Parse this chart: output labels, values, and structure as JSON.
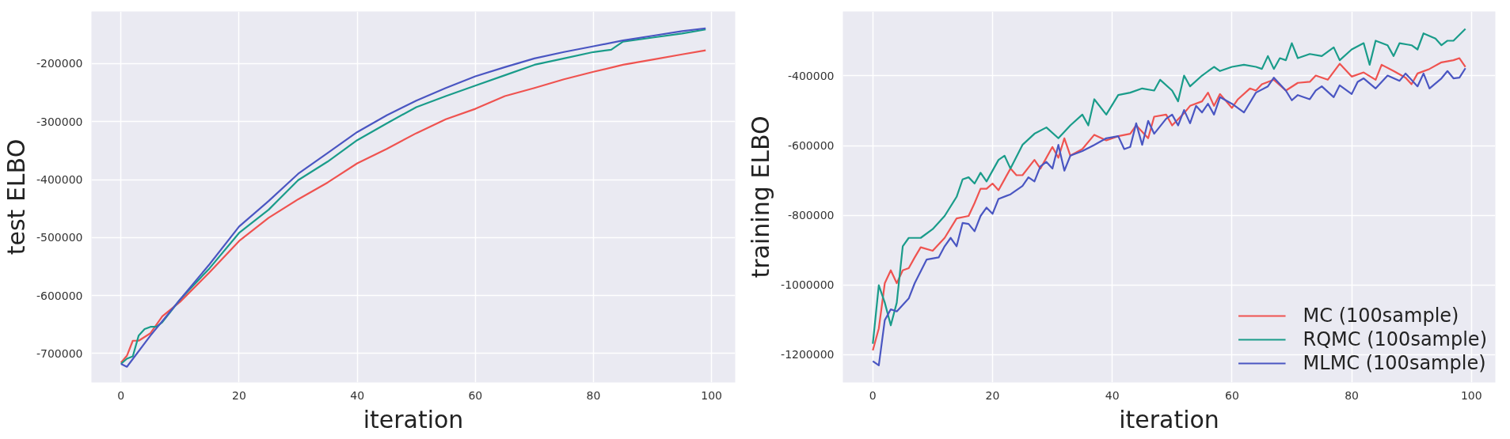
{
  "chart_data": [
    {
      "type": "line",
      "xlabel": "iteration",
      "ylabel": "test ELBO",
      "xlim": [
        -5,
        104
      ],
      "ylim": [
        -750000,
        -110000
      ],
      "xticks": [
        0,
        20,
        40,
        60,
        80,
        100
      ],
      "yticks": [
        -700000,
        -600000,
        -500000,
        -400000,
        -300000,
        -200000
      ],
      "grid": true,
      "legend": false,
      "series": [
        {
          "color": "#ef5350",
          "x": [
            0,
            1,
            2,
            3,
            5,
            7,
            10,
            15,
            20,
            25,
            30,
            35,
            40,
            45,
            50,
            55,
            60,
            65,
            70,
            75,
            80,
            85,
            90,
            95,
            99
          ],
          "values": [
            -716000,
            -704000,
            -678000,
            -678000,
            -665000,
            -636000,
            -611000,
            -560000,
            -506000,
            -466000,
            -434000,
            -405000,
            -372000,
            -347000,
            -320000,
            -296000,
            -278000,
            -256000,
            -242000,
            -227000,
            -214000,
            -202000,
            -193000,
            -184000,
            -177000
          ]
        },
        {
          "color": "#1a9c8a",
          "x": [
            0,
            1,
            2,
            3,
            4,
            5,
            6,
            7,
            10,
            15,
            20,
            25,
            30,
            35,
            40,
            45,
            50,
            55,
            60,
            65,
            70,
            75,
            80,
            83,
            85,
            90,
            95,
            99
          ],
          "values": [
            -718000,
            -709000,
            -705000,
            -669000,
            -658000,
            -654000,
            -654000,
            -646000,
            -607000,
            -553000,
            -492000,
            -452000,
            -401000,
            -369000,
            -332000,
            -303000,
            -275000,
            -256000,
            -238000,
            -220000,
            -202000,
            -191000,
            -180000,
            -176000,
            -162000,
            -155000,
            -148000,
            -141000
          ]
        },
        {
          "color": "#4a56c2",
          "x": [
            0,
            1,
            5,
            10,
            15,
            20,
            25,
            30,
            35,
            40,
            45,
            50,
            55,
            60,
            65,
            70,
            75,
            80,
            85,
            90,
            95,
            99
          ],
          "values": [
            -718000,
            -723000,
            -669000,
            -607000,
            -546000,
            -481000,
            -437000,
            -390000,
            -354000,
            -318000,
            -289000,
            -264000,
            -242000,
            -222000,
            -206000,
            -191000,
            -180000,
            -170000,
            -160000,
            -152000,
            -144000,
            -139000
          ]
        }
      ]
    },
    {
      "type": "line",
      "xlabel": "iteration",
      "ylabel": "training ELBO",
      "xlim": [
        -5,
        104
      ],
      "ylim": [
        -1280000,
        -215000
      ],
      "xticks": [
        0,
        20,
        40,
        60,
        80,
        100
      ],
      "yticks": [
        -1200000,
        -1000000,
        -800000,
        -600000,
        -400000
      ],
      "grid": true,
      "legend": "bottom right",
      "series": [
        {
          "name": "MC (100sample)",
          "color": "#ef5350",
          "x": [
            0,
            1,
            2,
            3,
            4,
            5,
            6,
            7,
            8,
            10,
            12,
            14,
            16,
            17,
            18,
            19,
            20,
            21,
            23,
            24,
            25,
            27,
            28,
            30,
            31,
            32,
            33,
            35,
            37,
            39,
            41,
            43,
            44,
            46,
            47,
            49,
            50,
            52,
            53,
            55,
            56,
            57,
            58,
            60,
            61,
            63,
            64,
            65,
            67,
            69,
            71,
            73,
            74,
            76,
            78,
            80,
            82,
            84,
            85,
            87,
            89,
            90,
            91,
            93,
            95,
            97,
            98,
            99
          ],
          "values": [
            -1188000,
            -1125000,
            -995000,
            -958000,
            -995000,
            -958000,
            -952000,
            -921000,
            -892000,
            -902000,
            -865000,
            -809000,
            -802000,
            -765000,
            -724000,
            -724000,
            -709000,
            -728000,
            -666000,
            -685000,
            -685000,
            -641000,
            -666000,
            -604000,
            -635000,
            -579000,
            -629000,
            -610000,
            -569000,
            -585000,
            -573000,
            -566000,
            -542000,
            -579000,
            -517000,
            -511000,
            -542000,
            -507000,
            -486000,
            -473000,
            -448000,
            -486000,
            -452000,
            -492000,
            -467000,
            -436000,
            -442000,
            -424000,
            -411000,
            -442000,
            -420000,
            -417000,
            -399000,
            -411000,
            -365000,
            -402000,
            -390000,
            -411000,
            -368000,
            -386000,
            -405000,
            -424000,
            -393000,
            -380000,
            -361000,
            -355000,
            -349000,
            -374000
          ]
        },
        {
          "name": "RQMC (100sample)",
          "color": "#1a9c8a",
          "x": [
            0,
            1,
            2,
            3,
            4,
            5,
            6,
            8,
            10,
            12,
            14,
            15,
            16,
            17,
            18,
            19,
            21,
            22,
            23,
            25,
            27,
            29,
            31,
            33,
            35,
            36,
            37,
            39,
            41,
            43,
            45,
            47,
            48,
            50,
            51,
            52,
            53,
            55,
            57,
            58,
            60,
            62,
            64,
            65,
            66,
            67,
            68,
            69,
            70,
            71,
            73,
            75,
            77,
            78,
            80,
            82,
            83,
            84,
            86,
            87,
            88,
            90,
            91,
            92,
            94,
            95,
            96,
            97,
            99
          ],
          "values": [
            -1169000,
            -1001000,
            -1051000,
            -1116000,
            -1051000,
            -889000,
            -865000,
            -865000,
            -840000,
            -802000,
            -747000,
            -697000,
            -691000,
            -709000,
            -678000,
            -703000,
            -641000,
            -629000,
            -666000,
            -598000,
            -566000,
            -548000,
            -579000,
            -542000,
            -511000,
            -542000,
            -467000,
            -511000,
            -455000,
            -448000,
            -436000,
            -442000,
            -411000,
            -442000,
            -473000,
            -399000,
            -430000,
            -399000,
            -374000,
            -386000,
            -374000,
            -368000,
            -374000,
            -380000,
            -343000,
            -380000,
            -349000,
            -355000,
            -306000,
            -349000,
            -337000,
            -343000,
            -318000,
            -355000,
            -324000,
            -306000,
            -368000,
            -299000,
            -312000,
            -343000,
            -306000,
            -312000,
            -324000,
            -278000,
            -293000,
            -312000,
            -299000,
            -299000,
            -265000
          ]
        },
        {
          "name": "MLMC (100sample)",
          "color": "#4a56c2",
          "x": [
            0,
            1,
            2,
            3,
            4,
            6,
            7,
            9,
            11,
            12,
            13,
            14,
            15,
            16,
            17,
            18,
            19,
            20,
            21,
            23,
            25,
            26,
            27,
            28,
            29,
            30,
            31,
            32,
            33,
            35,
            37,
            39,
            41,
            42,
            43,
            44,
            45,
            46,
            47,
            49,
            50,
            51,
            52,
            53,
            54,
            55,
            56,
            57,
            58,
            60,
            62,
            64,
            66,
            67,
            69,
            70,
            71,
            73,
            74,
            75,
            77,
            78,
            80,
            81,
            82,
            84,
            86,
            88,
            89,
            91,
            92,
            93,
            95,
            96,
            97,
            98,
            99
          ],
          "values": [
            -1219000,
            -1231000,
            -1101000,
            -1070000,
            -1076000,
            -1039000,
            -995000,
            -927000,
            -921000,
            -889000,
            -865000,
            -889000,
            -822000,
            -825000,
            -846000,
            -802000,
            -778000,
            -796000,
            -753000,
            -740000,
            -716000,
            -691000,
            -703000,
            -660000,
            -647000,
            -666000,
            -598000,
            -672000,
            -629000,
            -616000,
            -598000,
            -579000,
            -573000,
            -610000,
            -604000,
            -536000,
            -598000,
            -529000,
            -566000,
            -523000,
            -511000,
            -542000,
            -498000,
            -536000,
            -486000,
            -505000,
            -480000,
            -511000,
            -461000,
            -480000,
            -505000,
            -448000,
            -430000,
            -405000,
            -442000,
            -470000,
            -455000,
            -467000,
            -442000,
            -430000,
            -461000,
            -427000,
            -452000,
            -417000,
            -407000,
            -436000,
            -399000,
            -414000,
            -393000,
            -430000,
            -393000,
            -436000,
            -407000,
            -386000,
            -407000,
            -405000,
            -378000
          ]
        }
      ]
    }
  ]
}
